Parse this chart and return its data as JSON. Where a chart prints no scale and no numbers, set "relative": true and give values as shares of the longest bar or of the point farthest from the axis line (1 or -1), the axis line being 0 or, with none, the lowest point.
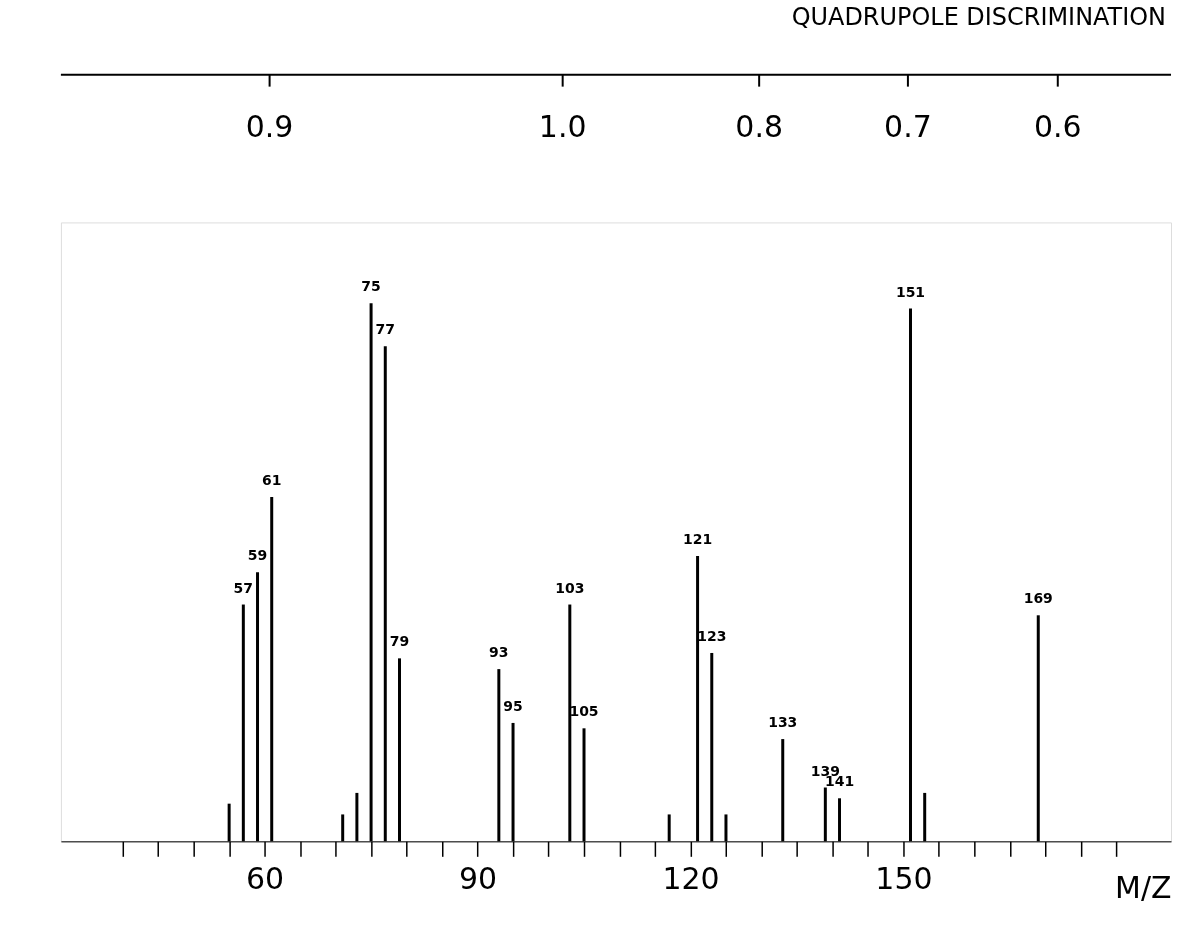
{
  "chart_data": {
    "type": "bar",
    "relative": true,
    "x": [
      55,
      57,
      59,
      61,
      71,
      73,
      75,
      77,
      79,
      93,
      95,
      103,
      105,
      117,
      121,
      123,
      125,
      133,
      139,
      141,
      151,
      153,
      169
    ],
    "values": [
      0.07,
      0.44,
      0.5,
      0.64,
      0.05,
      0.09,
      1.0,
      0.92,
      0.34,
      0.32,
      0.22,
      0.44,
      0.21,
      0.05,
      0.53,
      0.35,
      0.05,
      0.19,
      0.1,
      0.08,
      0.99,
      0.09,
      0.42
    ],
    "color": "#000000",
    "annotations": [
      "QUADRUPOLE DISCRIMINATION",
      "0.9",
      "1.0",
      "0.8",
      "0.7",
      "0.6",
      {
        "text": "57",
        "x": 57,
        "y": 0.44
      },
      {
        "text": "59",
        "x": 59,
        "y": 0.5
      },
      {
        "text": "61",
        "x": 61,
        "y": 0.64
      },
      {
        "text": "75",
        "x": 75,
        "y": 1.0
      },
      {
        "text": "77",
        "x": 77,
        "y": 0.92
      },
      {
        "text": "79",
        "x": 79,
        "y": 0.34
      },
      {
        "text": "93",
        "x": 93,
        "y": 0.32
      },
      {
        "text": "95",
        "x": 95,
        "y": 0.22
      },
      {
        "text": "103",
        "x": 103,
        "y": 0.44
      },
      {
        "text": "105",
        "x": 105,
        "y": 0.21
      },
      {
        "text": "121",
        "x": 121,
        "y": 0.53
      },
      {
        "text": "123",
        "x": 123,
        "y": 0.35
      },
      {
        "text": "133",
        "x": 133,
        "y": 0.19
      },
      {
        "text": "139",
        "x": 139,
        "y": 0.1
      },
      {
        "text": "141",
        "x": 141,
        "y": 0.08
      },
      {
        "text": "151",
        "x": 151,
        "y": 0.99
      },
      {
        "text": "169",
        "x": 169,
        "y": 0.42
      }
    ],
    "xlabel": "M/Z",
    "xlim": [
      32,
      187
    ],
    "xticks": [
      {
        "value": 40,
        "label": null
      },
      {
        "value": 45,
        "label": null
      },
      {
        "value": 50,
        "label": null
      },
      {
        "value": 55,
        "label": null
      },
      60,
      {
        "value": 65,
        "label": null
      },
      {
        "value": 70,
        "label": null
      },
      {
        "value": 75,
        "label": null
      },
      {
        "value": 80,
        "label": null
      },
      {
        "value": 85,
        "label": null
      },
      90,
      {
        "value": 95,
        "label": null
      },
      {
        "value": 100,
        "label": null
      },
      {
        "value": 105,
        "label": null
      },
      {
        "value": 110,
        "label": null
      },
      {
        "value": 115,
        "label": null
      },
      120,
      {
        "value": 125,
        "label": null
      },
      {
        "value": 130,
        "label": null
      },
      {
        "value": 135,
        "label": null
      },
      {
        "value": 140,
        "label": null
      },
      {
        "value": 145,
        "label": null
      },
      150,
      {
        "value": 155,
        "label": null
      },
      {
        "value": 160,
        "label": null
      },
      {
        "value": 165,
        "label": null
      },
      {
        "value": 170,
        "label": null
      },
      {
        "value": 175,
        "label": null
      },
      {
        "value": 180,
        "label": null
      }
    ],
    "grid": false
  }
}
